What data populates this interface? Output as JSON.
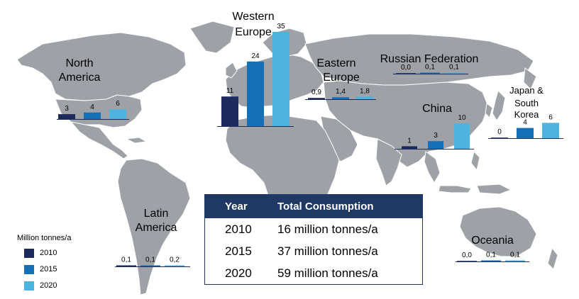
{
  "legend": {
    "title": "Million tonnes/a",
    "items": [
      {
        "label": "2010",
        "color": "#1d2a5e"
      },
      {
        "label": "2015",
        "color": "#1570b8"
      },
      {
        "label": "2020",
        "color": "#4eb3df"
      }
    ]
  },
  "table": {
    "headers": [
      "Year",
      "Total Consumption"
    ],
    "rows": [
      [
        "2010",
        "16 million tonnes/a"
      ],
      [
        "2015",
        "37 million tonnes/a"
      ],
      [
        "2020",
        "59 million tonnes/a"
      ]
    ]
  },
  "chart_data": {
    "type": "bar",
    "series_years": [
      "2010",
      "2015",
      "2020"
    ],
    "colors": [
      "#1d2a5e",
      "#1570b8",
      "#4eb3df"
    ],
    "regions": [
      {
        "name": "North America",
        "values": [
          3,
          4,
          6
        ],
        "labels": [
          "3",
          "4",
          "6"
        ]
      },
      {
        "name": "Western Europe",
        "values": [
          11,
          24,
          35
        ],
        "labels": [
          "11",
          "24",
          "35"
        ]
      },
      {
        "name": "Eastern Europe",
        "values": [
          0.9,
          1.4,
          1.8
        ],
        "labels": [
          "0,9",
          "1,4",
          "1,8"
        ]
      },
      {
        "name": "Russian Federation",
        "values": [
          0.0,
          0.1,
          0.1
        ],
        "labels": [
          "0,0",
          "0,1",
          "0,1"
        ]
      },
      {
        "name": "China",
        "values": [
          1,
          3,
          10
        ],
        "labels": [
          "1",
          "3",
          "10"
        ]
      },
      {
        "name": "Japan & South Korea",
        "values": [
          0,
          4,
          6
        ],
        "labels": [
          "0",
          "4",
          "6"
        ]
      },
      {
        "name": "Latin America",
        "values": [
          0.1,
          0.1,
          0.2
        ],
        "labels": [
          "0,1",
          "0,1",
          "0,2"
        ]
      },
      {
        "name": "Oceania",
        "values": [
          0.0,
          0.1,
          0.1
        ],
        "labels": [
          "0,0",
          "0,1",
          "0,1"
        ]
      }
    ]
  }
}
